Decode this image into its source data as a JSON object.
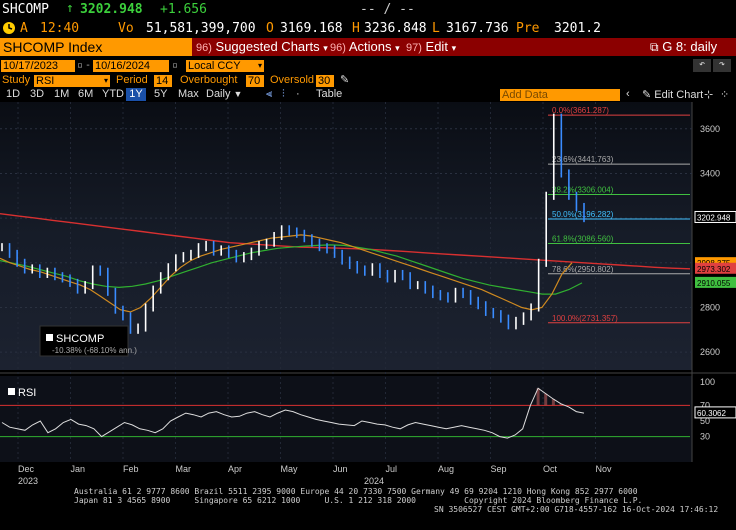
{
  "quote": {
    "ticker": "SHCOMP",
    "last": "3202.948",
    "change": "+1.656",
    "dash1": "-- / --",
    "row2": {
      "a_label": "A",
      "time": "12:40",
      "vo_label": "Vo",
      "volume": "51,581,399,700",
      "o_label": "O",
      "open": "3169.168",
      "h_label": "H",
      "high": "3236.848",
      "l_label": "L",
      "low": "3167.736",
      "pre_label": "Pre",
      "pre": "3201.2"
    }
  },
  "command_bar": {
    "ticker_field": "SHCOMP Index",
    "menus": [
      {
        "num": "96)",
        "label": "Suggested Charts"
      },
      {
        "num": "96)",
        "label": "Actions"
      },
      {
        "num": "97)",
        "label": "Edit"
      }
    ],
    "right_label": "G 8: daily"
  },
  "toolbar": {
    "date_from": "10/17/2023",
    "date_to": "10/16/2024",
    "currency": "Local CCY",
    "study_label": "Study",
    "study_value": "RSI",
    "period_label": "Period",
    "period_value": "14",
    "overbought_label": "Overbought",
    "overbought_value": "70",
    "oversold_label": "Oversold",
    "oversold_value": "30",
    "ranges": [
      "1D",
      "3D",
      "1M",
      "6M",
      "YTD",
      "1Y",
      "5Y",
      "Max"
    ],
    "active_range": "1Y",
    "frequency": "Daily",
    "table_label": "Table",
    "add_data_placeholder": "Add Data",
    "edit_chart_label": "Edit Chart"
  },
  "chart_data": {
    "type": "line",
    "series_name": "SHCOMP",
    "legend_sub": "-10.38% (-68.10% ann.)",
    "x_ticks": [
      "Dec",
      "Jan",
      "Feb",
      "Mar",
      "Apr",
      "May",
      "Jun",
      "Jul",
      "Aug",
      "Sep",
      "Oct",
      "Nov"
    ],
    "years": [
      "2023",
      "2024"
    ],
    "y_ticks": [
      2600,
      2800,
      3000,
      3200,
      3400,
      3600
    ],
    "ylim": [
      2520,
      3720
    ],
    "right_labels": [
      {
        "value": 3202.948,
        "text": "3202.948",
        "color": "#ffffff"
      },
      {
        "value": 2998.375,
        "text": "2998.375",
        "color": "#ff9900"
      },
      {
        "value": 2973.302,
        "text": "2973.302",
        "color": "#e04040"
      },
      {
        "value": 2910.055,
        "text": "2910.055",
        "color": "#40c040"
      }
    ],
    "fib_levels": [
      {
        "label": "0.0%(3661.287)",
        "value": 3661.287,
        "color": "#e04040"
      },
      {
        "label": "23.6%(3441.763)",
        "value": 3441.763,
        "color": "#aaaaaa"
      },
      {
        "label": "38.2%(3306.004)",
        "value": 3306.004,
        "color": "#40c040"
      },
      {
        "label": "50.0%(3196.282)",
        "value": 3196.282,
        "color": "#40c0ff"
      },
      {
        "label": "61.8%(3086.560)",
        "value": 3086.56,
        "color": "#40c040"
      },
      {
        "label": "78.6%(2950.802)",
        "value": 2950.802,
        "color": "#aaaaaa"
      },
      {
        "label": "100.0%(2731.357)",
        "value": 2731.357,
        "color": "#e04040"
      }
    ],
    "price": [
      3070,
      3040,
      3000,
      2970,
      2975,
      2950,
      2960,
      2940,
      2930,
      2910,
      2880,
      2900,
      2970,
      2960,
      2870,
      2790,
      2760,
      2700,
      2710,
      2800,
      2880,
      2940,
      2980,
      3020,
      3030,
      3040,
      3070,
      3080,
      3050,
      3060,
      3040,
      3020,
      3030,
      3050,
      3080,
      3090,
      3120,
      3150,
      3140,
      3130,
      3110,
      3090,
      3070,
      3060,
      3040,
      3010,
      2990,
      2970,
      2960,
      2980,
      2950,
      2930,
      2950,
      2940,
      2900,
      2900,
      2880,
      2860,
      2850,
      2840,
      2870,
      2860,
      2830,
      2810,
      2780,
      2770,
      2750,
      2720,
      2740,
      2760,
      2800,
      3000,
      3300,
      3650,
      3400,
      3300,
      3250,
      3200
    ],
    "ma_orange": [
      3020,
      3000,
      2985,
      2970,
      2960,
      2945,
      2930,
      2915,
      2900,
      2880,
      2850,
      2820,
      2790,
      2780,
      2800,
      2840,
      2890,
      2940,
      2980,
      3010,
      3030,
      3045,
      3060,
      3070,
      3080,
      3090,
      3100,
      3110,
      3115,
      3120,
      3125,
      3120,
      3110,
      3100,
      3090,
      3075,
      3060,
      3045,
      3030,
      3015,
      3000,
      2985,
      2970,
      2955,
      2940,
      2925,
      2910,
      2895,
      2880,
      2860,
      2840,
      2820,
      2800,
      2790,
      2800,
      2860,
      2950,
      3000
    ],
    "ma_green": [
      3010,
      2998,
      2985,
      2970,
      2955,
      2940,
      2920,
      2905,
      2895,
      2890,
      2895,
      2905,
      2920,
      2940,
      2960,
      2980,
      3000,
      3015,
      3030,
      3045,
      3055,
      3065,
      3070,
      3075,
      3078,
      3080,
      3078,
      3070,
      3060,
      3045,
      3030,
      3010,
      2990,
      2970,
      2950,
      2930,
      2915,
      2900,
      2890,
      2880,
      2870,
      2860,
      2860,
      2880,
      2910
    ],
    "ma_red": [
      3220,
      3210,
      3200,
      3190,
      3180,
      3170,
      3160,
      3150,
      3140,
      3130,
      3120,
      3110,
      3100,
      3090,
      3085,
      3080,
      3075,
      3070,
      3068,
      3066,
      3063,
      3060,
      3055,
      3050,
      3045,
      3040,
      3035,
      3030,
      3025,
      3020,
      3015,
      3010,
      3005,
      3000,
      2995,
      2990,
      2985,
      2980,
      2976,
      2973
    ],
    "rsi": {
      "label": "RSI",
      "value": 60.3062,
      "value_text": "60.3062",
      "y_ticks": [
        30,
        50,
        70,
        100
      ],
      "ylim": [
        0,
        105
      ],
      "overbought": 70,
      "oversold": 30,
      "values": [
        48,
        42,
        40,
        38,
        45,
        50,
        35,
        40,
        48,
        52,
        46,
        44,
        40,
        30,
        36,
        42,
        48,
        45,
        40,
        38,
        35,
        40,
        50,
        55,
        60,
        58,
        55,
        60,
        62,
        58,
        55,
        56,
        60,
        62,
        58,
        55,
        60,
        64,
        62,
        58,
        55,
        52,
        50,
        48,
        46,
        45,
        44,
        50,
        48,
        46,
        45,
        42,
        40,
        45,
        48,
        46,
        44,
        42,
        40,
        42,
        44,
        42,
        40,
        38,
        35,
        30,
        28,
        32,
        40,
        70,
        92,
        85,
        78,
        72,
        68,
        62,
        60
      ]
    }
  },
  "footer": {
    "line1": "Australia 61 2 9777 8600 Brazil 5511 2395 9000 Europe 44 20 7330 7500 Germany 49 69 9204 1210 Hong Kong 852 2977 6000",
    "line2": "Japan 81 3 4565 8900     Singapore 65 6212 1000     U.S. 1 212 318 2000          Copyright 2024 Bloomberg Finance L.P.",
    "line3": "SN 3506527 CEST GMT+2:00 G718-4557-162 16-Oct-2024 17:46:12"
  }
}
